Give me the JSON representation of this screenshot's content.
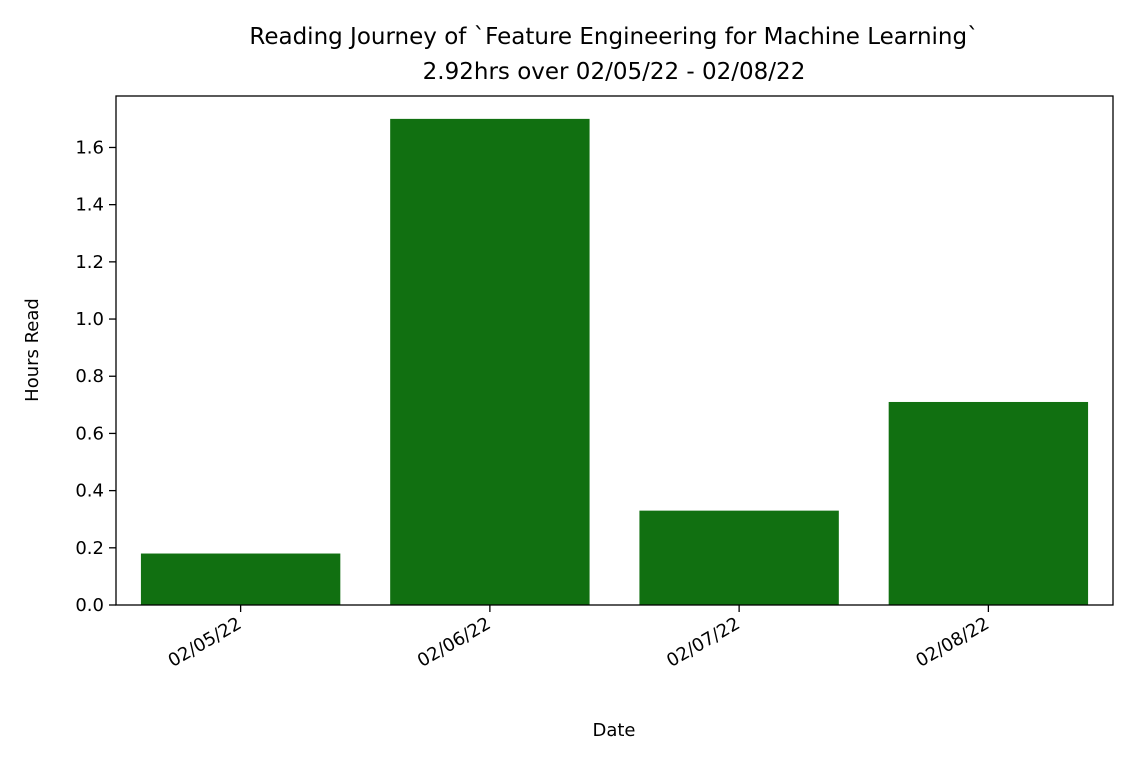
{
  "chart_data": {
    "type": "bar",
    "title": "Reading Journey of `Feature Engineering for Machine Learning`",
    "subtitle": "2.92hrs over 02/05/22 - 02/08/22",
    "xlabel": "Date",
    "ylabel": "Hours Read",
    "categories": [
      "02/05/22",
      "02/06/22",
      "02/07/22",
      "02/08/22"
    ],
    "values": [
      0.18,
      1.7,
      0.33,
      0.71
    ],
    "ylim": [
      0,
      1.78
    ],
    "yticks": [
      0.0,
      0.2,
      0.4,
      0.6,
      0.8,
      1.0,
      1.2,
      1.4,
      1.6
    ],
    "ytick_labels": [
      "0.0",
      "0.2",
      "0.4",
      "0.6",
      "0.8",
      "1.0",
      "1.2",
      "1.4",
      "1.6"
    ],
    "bar_color": "#117011",
    "grid": false,
    "legend": "none"
  }
}
